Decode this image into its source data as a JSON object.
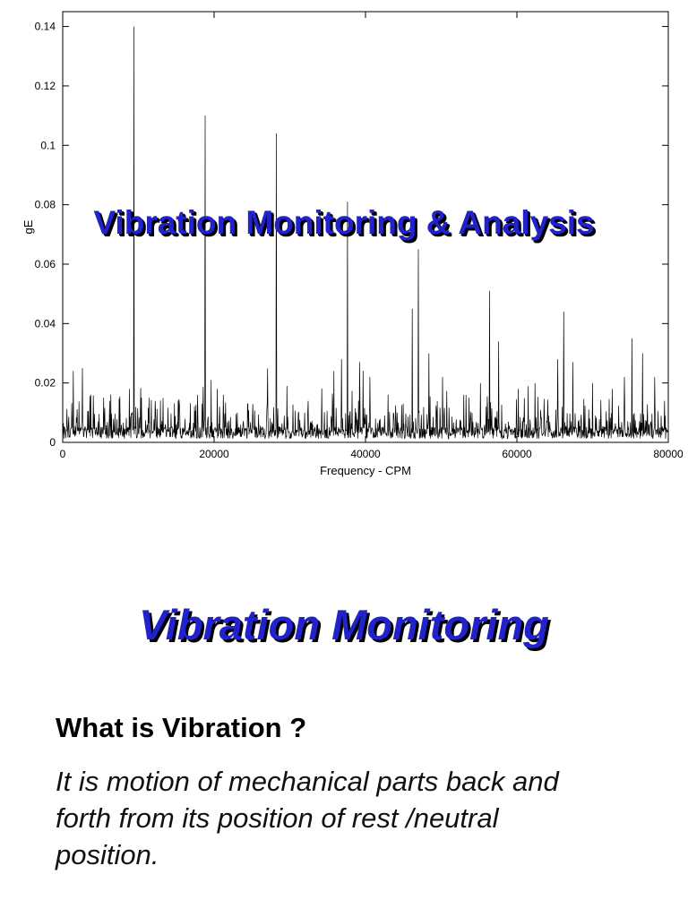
{
  "slide": {
    "overlay_title": "Vibration Monitoring & Analysis",
    "section_title": "Vibration Monitoring",
    "heading": "What is Vibration ?",
    "body_lines": [
      "It is motion of mechanical parts back and",
      "forth from its position of rest /neutral",
      "position."
    ],
    "accent_color": "#2222cc"
  },
  "chart_data": {
    "type": "line",
    "title": "",
    "xlabel": "Frequency - CPM",
    "ylabel": "gE",
    "xlim": [
      0,
      80000
    ],
    "ylim": [
      0,
      0.145
    ],
    "xticks": [
      0,
      20000,
      40000,
      60000,
      80000
    ],
    "yticks": [
      0,
      0.02,
      0.04,
      0.06,
      0.08,
      0.1,
      0.12,
      0.14
    ],
    "grid": false,
    "legend": "none",
    "line_color": "#000000",
    "noise_floor": 0.004,
    "seed": 1337,
    "points": 1600,
    "major_peaks": [
      {
        "x": 9400,
        "y": 0.14
      },
      {
        "x": 18800,
        "y": 0.11
      },
      {
        "x": 28200,
        "y": 0.104
      },
      {
        "x": 37600,
        "y": 0.081
      },
      {
        "x": 47000,
        "y": 0.065
      },
      {
        "x": 56400,
        "y": 0.051
      },
      {
        "x": 66200,
        "y": 0.044
      },
      {
        "x": 75200,
        "y": 0.035
      }
    ],
    "secondary_peaks": [
      {
        "x": 1400,
        "y": 0.024
      },
      {
        "x": 2600,
        "y": 0.025
      },
      {
        "x": 3700,
        "y": 0.016
      },
      {
        "x": 6200,
        "y": 0.014
      },
      {
        "x": 8800,
        "y": 0.018
      },
      {
        "x": 10400,
        "y": 0.015
      },
      {
        "x": 12200,
        "y": 0.014
      },
      {
        "x": 15400,
        "y": 0.013
      },
      {
        "x": 17800,
        "y": 0.016
      },
      {
        "x": 19600,
        "y": 0.021
      },
      {
        "x": 21200,
        "y": 0.016
      },
      {
        "x": 24400,
        "y": 0.013
      },
      {
        "x": 27000,
        "y": 0.013
      },
      {
        "x": 29600,
        "y": 0.019
      },
      {
        "x": 32400,
        "y": 0.014
      },
      {
        "x": 35800,
        "y": 0.024
      },
      {
        "x": 36800,
        "y": 0.028
      },
      {
        "x": 39200,
        "y": 0.027
      },
      {
        "x": 40600,
        "y": 0.022
      },
      {
        "x": 43000,
        "y": 0.016
      },
      {
        "x": 46200,
        "y": 0.045
      },
      {
        "x": 48400,
        "y": 0.03
      },
      {
        "x": 50200,
        "y": 0.022
      },
      {
        "x": 53000,
        "y": 0.016
      },
      {
        "x": 55200,
        "y": 0.02
      },
      {
        "x": 57600,
        "y": 0.034
      },
      {
        "x": 60200,
        "y": 0.018
      },
      {
        "x": 62400,
        "y": 0.02
      },
      {
        "x": 65400,
        "y": 0.028
      },
      {
        "x": 67400,
        "y": 0.027
      },
      {
        "x": 70000,
        "y": 0.02
      },
      {
        "x": 72600,
        "y": 0.018
      },
      {
        "x": 74200,
        "y": 0.022
      },
      {
        "x": 76600,
        "y": 0.03
      },
      {
        "x": 78200,
        "y": 0.022
      }
    ]
  }
}
